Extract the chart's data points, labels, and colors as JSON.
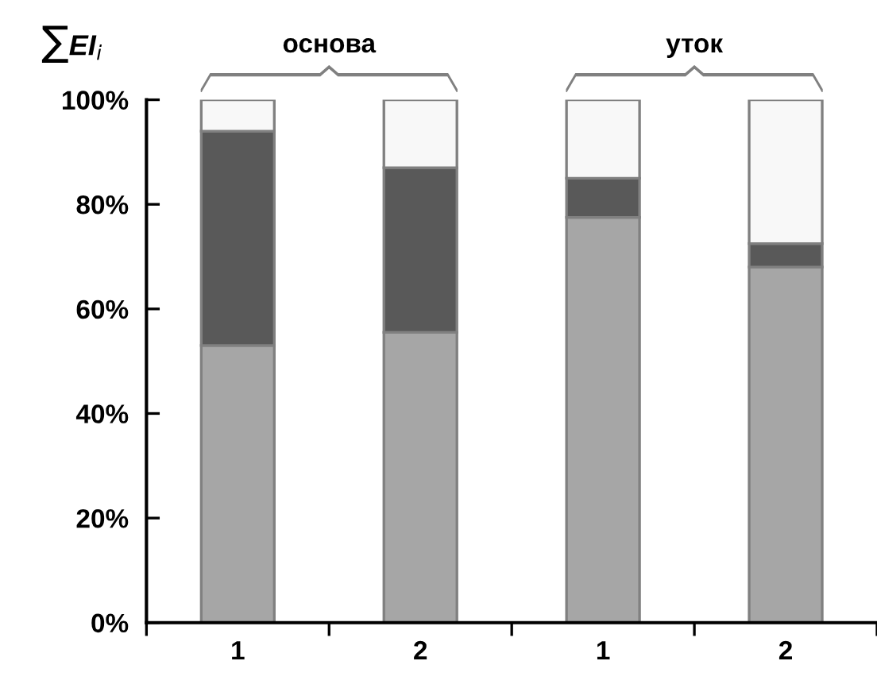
{
  "chart_data": {
    "type": "bar",
    "stacked": true,
    "ylabel": "∑EI$_{i}$",
    "categories": [
      "1",
      "2",
      "1",
      "2"
    ],
    "series": [
      {
        "color": "#a6a6a6",
        "values": [
          53,
          55.5,
          77.5,
          68
        ]
      },
      {
        "color": "#595959",
        "values": [
          41,
          31.5,
          7.5,
          4.5
        ]
      },
      {
        "color": "#f8f8f8",
        "values": [
          6,
          13,
          15,
          27.5
        ]
      }
    ],
    "annotations": [
      "основа",
      "уток"
    ],
    "ylim": [
      0,
      100
    ],
    "yticks": [
      {
        "value": 0,
        "label": "0%"
      },
      {
        "value": 20,
        "label": "20%"
      },
      {
        "value": 40,
        "label": "40%"
      },
      {
        "value": 60,
        "label": "60%"
      },
      {
        "value": 80,
        "label": "80%"
      },
      {
        "value": 100,
        "label": "100%"
      }
    ],
    "grid": false
  }
}
